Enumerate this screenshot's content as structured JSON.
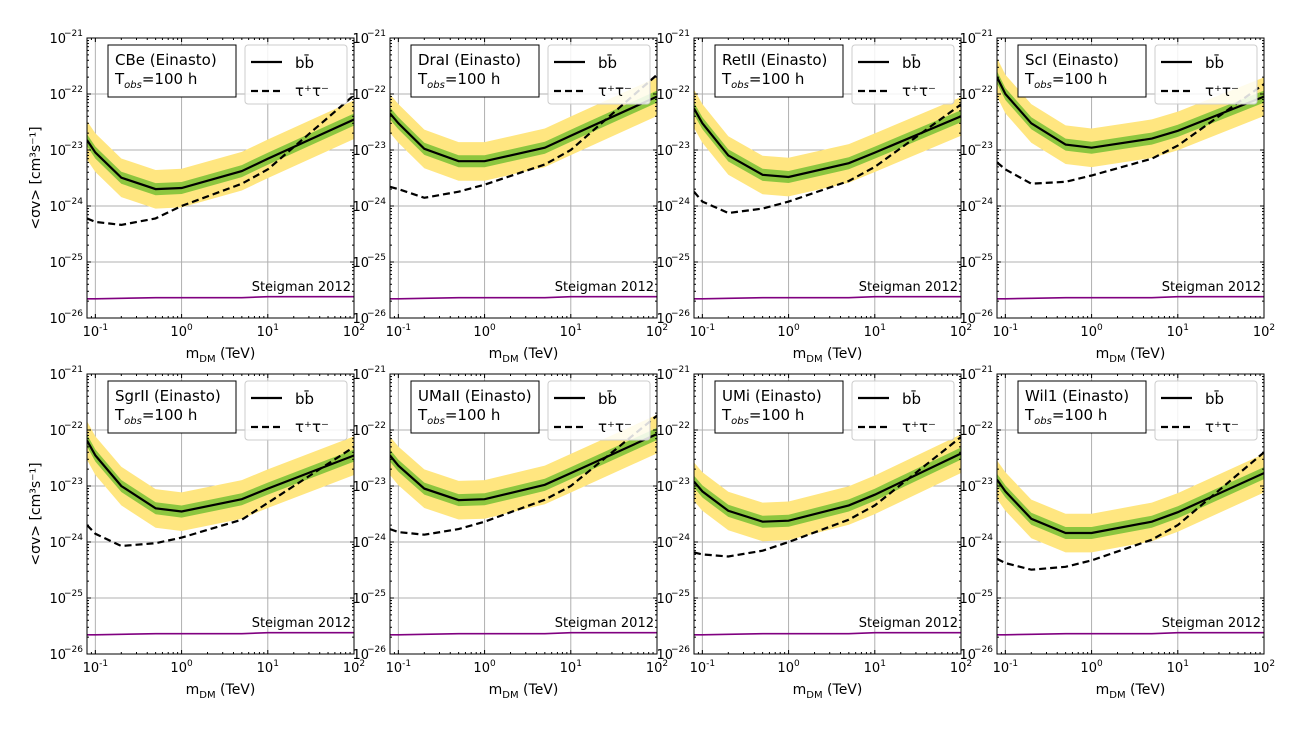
{
  "figure": {
    "ylabel": "<σv> [cm³s⁻¹]",
    "xlabel": "m_DM (TeV)",
    "legend": {
      "bb_label": "bb̄",
      "tautau_label": "τ⁺τ⁻"
    },
    "tobs_label": "T_obs=100 h",
    "steigman_label": "Steigman 2012"
  },
  "colors": {
    "median": "#000000",
    "band68": "#8cc63f",
    "band95": "#ffe680",
    "tautau": "#000000",
    "steigman": "#800080",
    "grid": "#b0b0b0"
  },
  "chart_data": [
    {
      "type": "line",
      "title": "CBe (Einasto)",
      "xscale": "log",
      "yscale": "log",
      "xlim": [
        0.08,
        100
      ],
      "ylim": [
        1e-26,
        1e-21
      ],
      "grid": true,
      "legend_position": "top-right",
      "x": [
        0.08,
        0.1,
        0.2,
        0.5,
        1,
        5,
        10,
        100
      ],
      "series": [
        {
          "name": "bb̄",
          "values": [
            1.5e-23,
            9e-24,
            3.2e-24,
            2e-24,
            2.1e-24,
            4.2e-24,
            7e-24,
            3.5e-23
          ]
        },
        {
          "name": "τ⁺τ⁻",
          "values": [
            6e-25,
            5.2e-25,
            4.6e-25,
            6e-25,
            1e-24,
            2.5e-24,
            4.5e-24,
            9.5e-23
          ]
        },
        {
          "name": "Steigman 2012",
          "values": [
            2.2e-26,
            2.2e-26,
            2.25e-26,
            2.3e-26,
            2.3e-26,
            2.3e-26,
            2.4e-26,
            2.4e-26
          ]
        }
      ]
    },
    {
      "type": "line",
      "title": "DraI (Einasto)",
      "xscale": "log",
      "yscale": "log",
      "xlim": [
        0.08,
        100
      ],
      "ylim": [
        1e-26,
        1e-21
      ],
      "grid": true,
      "legend_position": "top-right",
      "x": [
        0.08,
        0.1,
        0.2,
        0.5,
        1,
        5,
        10,
        100
      ],
      "series": [
        {
          "name": "bb̄",
          "values": [
            4.5e-23,
            3e-23,
            1.05e-23,
            6.3e-24,
            6.3e-24,
            1.1e-23,
            1.8e-23,
            9e-23
          ]
        },
        {
          "name": "τ⁺τ⁻",
          "values": [
            2.2e-24,
            2e-24,
            1.4e-24,
            1.8e-24,
            2.4e-24,
            5.5e-24,
            1e-23,
            2.2e-22
          ]
        },
        {
          "name": "Steigman 2012",
          "values": [
            2.2e-26,
            2.2e-26,
            2.25e-26,
            2.3e-26,
            2.3e-26,
            2.3e-26,
            2.4e-26,
            2.4e-26
          ]
        }
      ]
    },
    {
      "type": "line",
      "title": "RetII (Einasto)",
      "xscale": "log",
      "yscale": "log",
      "xlim": [
        0.08,
        100
      ],
      "ylim": [
        1e-26,
        1e-21
      ],
      "grid": true,
      "legend_position": "top-right",
      "x": [
        0.08,
        0.1,
        0.2,
        0.5,
        1,
        5,
        10,
        100
      ],
      "series": [
        {
          "name": "bb̄",
          "values": [
            5.5e-23,
            3e-23,
            8e-24,
            3.6e-24,
            3.3e-24,
            5.8e-24,
            9e-24,
            4e-23
          ]
        },
        {
          "name": "τ⁺τ⁻",
          "values": [
            1.8e-24,
            1.2e-24,
            7.5e-25,
            9e-25,
            1.2e-24,
            2.8e-24,
            5e-24,
            6.5e-23
          ]
        },
        {
          "name": "Steigman 2012",
          "values": [
            2.2e-26,
            2.2e-26,
            2.25e-26,
            2.3e-26,
            2.3e-26,
            2.3e-26,
            2.4e-26,
            2.4e-26
          ]
        }
      ]
    },
    {
      "type": "line",
      "title": "ScI (Einasto)",
      "xscale": "log",
      "yscale": "log",
      "xlim": [
        0.08,
        100
      ],
      "ylim": [
        1e-26,
        1e-21
      ],
      "grid": true,
      "legend_position": "top-right",
      "x": [
        0.08,
        0.1,
        0.2,
        0.5,
        1,
        5,
        10,
        100
      ],
      "series": [
        {
          "name": "bb̄",
          "values": [
            2e-22,
            1e-22,
            3e-23,
            1.25e-23,
            1.1e-23,
            1.6e-23,
            2.2e-23,
            9e-23
          ]
        },
        {
          "name": "τ⁺τ⁻",
          "values": [
            6e-24,
            4.5e-24,
            2.5e-24,
            2.7e-24,
            3.5e-24,
            7e-24,
            1.2e-23,
            1.5e-22
          ]
        },
        {
          "name": "Steigman 2012",
          "values": [
            2.2e-26,
            2.2e-26,
            2.25e-26,
            2.3e-26,
            2.3e-26,
            2.3e-26,
            2.4e-26,
            2.4e-26
          ]
        }
      ]
    },
    {
      "type": "line",
      "title": "SgrII (Einasto)",
      "xscale": "log",
      "yscale": "log",
      "xlim": [
        0.08,
        100
      ],
      "ylim": [
        1e-26,
        1e-21
      ],
      "grid": true,
      "legend_position": "top-right",
      "x": [
        0.08,
        0.1,
        0.2,
        0.5,
        1,
        5,
        10,
        100
      ],
      "series": [
        {
          "name": "bb̄",
          "values": [
            6.5e-23,
            3.5e-23,
            1e-23,
            4e-24,
            3.5e-24,
            5.8e-24,
            9e-24,
            3.5e-23
          ]
        },
        {
          "name": "τ⁺τ⁻",
          "values": [
            2e-24,
            1.4e-24,
            8.5e-25,
            9.5e-25,
            1.2e-24,
            2.5e-24,
            5e-24,
            5e-23
          ]
        },
        {
          "name": "Steigman 2012",
          "values": [
            2.2e-26,
            2.2e-26,
            2.25e-26,
            2.3e-26,
            2.3e-26,
            2.3e-26,
            2.4e-26,
            2.4e-26
          ]
        }
      ]
    },
    {
      "type": "line",
      "title": "UMaII (Einasto)",
      "xscale": "log",
      "yscale": "log",
      "xlim": [
        0.08,
        100
      ],
      "ylim": [
        1e-26,
        1e-21
      ],
      "grid": true,
      "legend_position": "top-right",
      "x": [
        0.08,
        0.1,
        0.2,
        0.5,
        1,
        5,
        10,
        100
      ],
      "series": [
        {
          "name": "bb̄",
          "values": [
            3.5e-23,
            2.3e-23,
            9e-24,
            5.6e-24,
            5.8e-24,
            1.05e-23,
            1.7e-23,
            8.5e-23
          ]
        },
        {
          "name": "τ⁺τ⁻",
          "values": [
            1.7e-24,
            1.5e-24,
            1.35e-24,
            1.7e-24,
            2.3e-24,
            5.7e-24,
            1e-23,
            1.8e-22
          ]
        },
        {
          "name": "Steigman 2012",
          "values": [
            2.2e-26,
            2.2e-26,
            2.25e-26,
            2.3e-26,
            2.3e-26,
            2.3e-26,
            2.4e-26,
            2.4e-26
          ]
        }
      ]
    },
    {
      "type": "line",
      "title": "UMi (Einasto)",
      "xscale": "log",
      "yscale": "log",
      "xlim": [
        0.08,
        100
      ],
      "ylim": [
        1e-26,
        1e-21
      ],
      "grid": true,
      "legend_position": "top-right",
      "x": [
        0.08,
        0.1,
        0.2,
        0.5,
        1,
        5,
        10,
        100
      ],
      "series": [
        {
          "name": "bb̄",
          "values": [
            1.2e-23,
            8e-24,
            3.6e-24,
            2.3e-24,
            2.4e-24,
            4.5e-24,
            7e-24,
            3.8e-23
          ]
        },
        {
          "name": "τ⁺τ⁻",
          "values": [
            6.5e-25,
            6e-25,
            5.5e-25,
            7e-25,
            1e-24,
            2.5e-24,
            4.5e-24,
            7.5e-23
          ]
        },
        {
          "name": "Steigman 2012",
          "values": [
            2.2e-26,
            2.2e-26,
            2.25e-26,
            2.3e-26,
            2.3e-26,
            2.3e-26,
            2.4e-26,
            2.4e-26
          ]
        }
      ]
    },
    {
      "type": "line",
      "title": "Wil1 (Einasto)",
      "xscale": "log",
      "yscale": "log",
      "xlim": [
        0.08,
        100
      ],
      "ylim": [
        1e-26,
        1e-21
      ],
      "grid": true,
      "legend_position": "top-right",
      "x": [
        0.08,
        0.1,
        0.2,
        0.5,
        1,
        5,
        10,
        100
      ],
      "series": [
        {
          "name": "bb̄",
          "values": [
            1.3e-23,
            8e-24,
            2.6e-24,
            1.45e-24,
            1.45e-24,
            2.3e-24,
            3.4e-24,
            1.7e-23
          ]
        },
        {
          "name": "τ⁺τ⁻",
          "values": [
            5e-25,
            4.2e-25,
            3.2e-25,
            3.6e-25,
            4.7e-25,
            1.1e-24,
            2e-24,
            4e-23
          ]
        },
        {
          "name": "Steigman 2012",
          "values": [
            2.2e-26,
            2.2e-26,
            2.25e-26,
            2.3e-26,
            2.3e-26,
            2.3e-26,
            2.4e-26,
            2.4e-26
          ]
        }
      ]
    }
  ]
}
